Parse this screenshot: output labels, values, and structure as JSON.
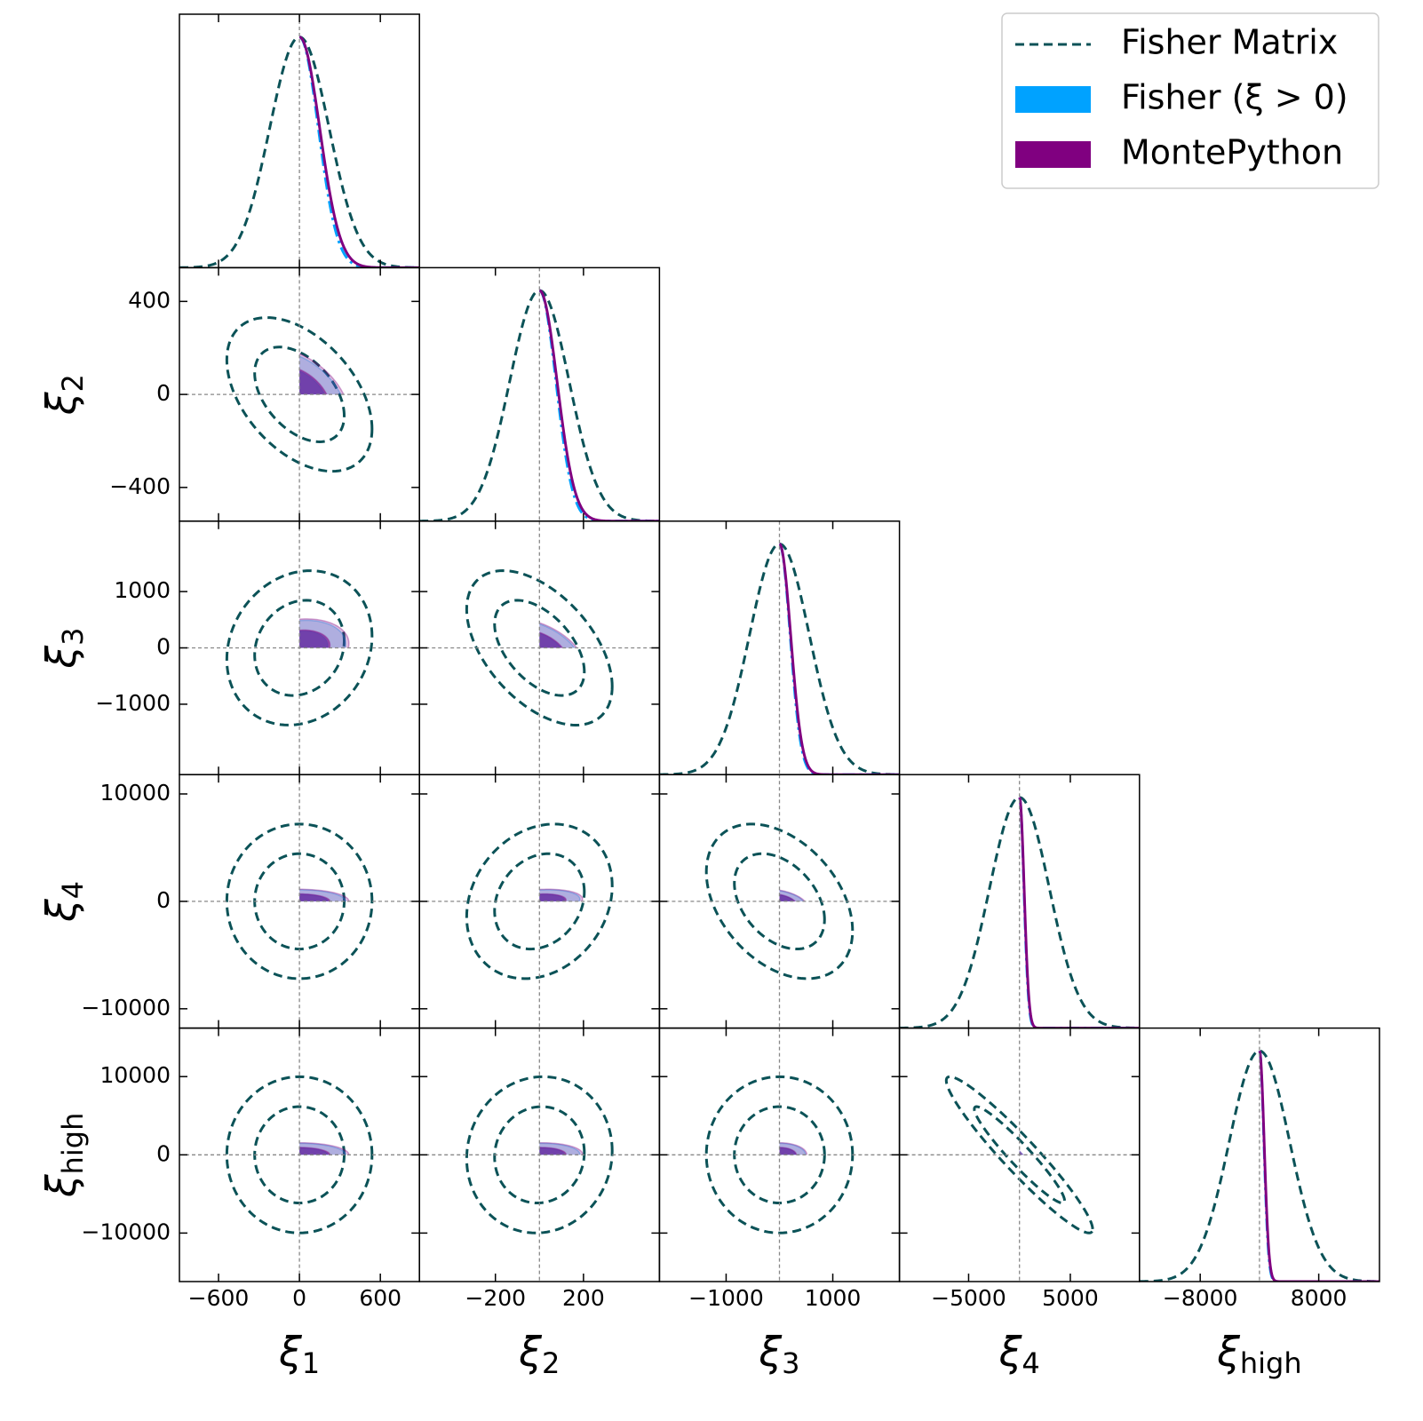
{
  "chart_data": {
    "type": "corner",
    "parameters": [
      {
        "symbol": "ξ",
        "subscript": "1",
        "lim": [
          -890,
          890
        ],
        "xticks": [
          {
            "value": -600,
            "label": "−600"
          },
          0,
          600
        ]
      },
      {
        "symbol": "ξ",
        "subscript": "2",
        "lim": [
          -545,
          545
        ],
        "xticks": [
          {
            "value": -200,
            "label": "−200"
          },
          200
        ],
        "yticks": [
          400,
          0,
          {
            "value": -400,
            "label": "−400"
          }
        ]
      },
      {
        "symbol": "ξ",
        "subscript": "3",
        "lim": [
          -2250,
          2250
        ],
        "xticks": [
          {
            "value": -1000,
            "label": "−1000"
          },
          1000
        ],
        "yticks": [
          1000,
          0,
          {
            "value": -1000,
            "label": "−1000"
          }
        ]
      },
      {
        "symbol": "ξ",
        "subscript": "4",
        "lim": [
          -11800,
          11800
        ],
        "xticks": [
          {
            "value": -5000,
            "label": "−5000"
          },
          5000
        ],
        "yticks": [
          10000,
          0,
          {
            "value": -10000,
            "label": "−10000"
          }
        ]
      },
      {
        "symbol": "ξ",
        "subscript": "high",
        "lim": [
          -16200,
          16200
        ],
        "xticks": [
          {
            "value": -8000,
            "label": "−8000"
          },
          8000
        ],
        "yticks": [
          10000,
          0,
          {
            "value": -10000,
            "label": "−10000"
          }
        ]
      }
    ],
    "fiducial": [
      0,
      0,
      0,
      0,
      0
    ],
    "correlation": [
      [],
      [
        -0.45
      ],
      [
        0.15,
        -0.5
      ],
      [
        0,
        0.2,
        -0.38
      ],
      [
        0,
        0.05,
        0,
        -0.95
      ]
    ],
    "contour_levels": [
      0.68,
      0.95
    ],
    "legend": "upper right",
    "series": [
      {
        "name": "Fisher Matrix",
        "color": "#0b5257",
        "line_style": "dashed",
        "fill": false,
        "truncated": false,
        "sigma": [
          220,
          135,
          560,
          2940,
          4080
        ]
      },
      {
        "name": "Fisher (ξ > 0)",
        "color": "#00a2ff",
        "line_style": "dashdot",
        "fill": true,
        "truncated": true,
        "sigma": [
          140,
          75,
          200,
          440,
          600
        ]
      },
      {
        "name": "MontePython",
        "color": "#800080",
        "line_style": "solid",
        "fill": true,
        "truncated": true,
        "sigma": [
          150,
          80,
          210,
          460,
          630
        ]
      }
    ]
  }
}
